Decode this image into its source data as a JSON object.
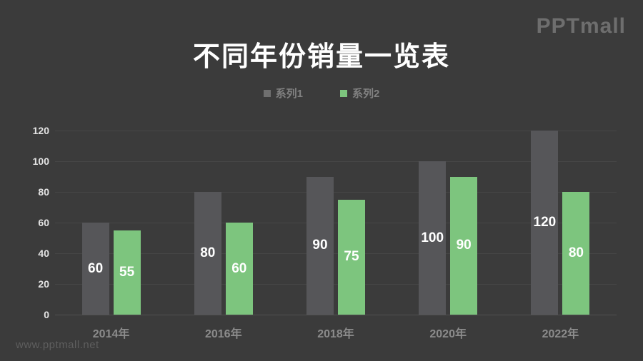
{
  "page": {
    "background": "#3b3b3b",
    "logo_text": "PPTmall",
    "watermark": "www.pptmall.net"
  },
  "title": "不同年份销量一览表",
  "legend": [
    {
      "label": "系列1",
      "color": "#6f6f6f"
    },
    {
      "label": "系列2",
      "color": "#7dc57e"
    }
  ],
  "chart_data": {
    "type": "bar",
    "title": "不同年份销量一览表",
    "categories": [
      "2014年",
      "2016年",
      "2018年",
      "2020年",
      "2022年"
    ],
    "series": [
      {
        "name": "系列1",
        "color": "#565659",
        "values": [
          60,
          80,
          90,
          100,
          120
        ]
      },
      {
        "name": "系列2",
        "color": "#7dc57e",
        "values": [
          55,
          60,
          75,
          90,
          80
        ]
      }
    ],
    "ylabel": "",
    "xlabel": "",
    "ylim": [
      0,
      120
    ],
    "ytick_step": 20,
    "grid": true,
    "legend_position": "top",
    "value_labels": "inside-center",
    "value_label_color": "#ffffff"
  }
}
